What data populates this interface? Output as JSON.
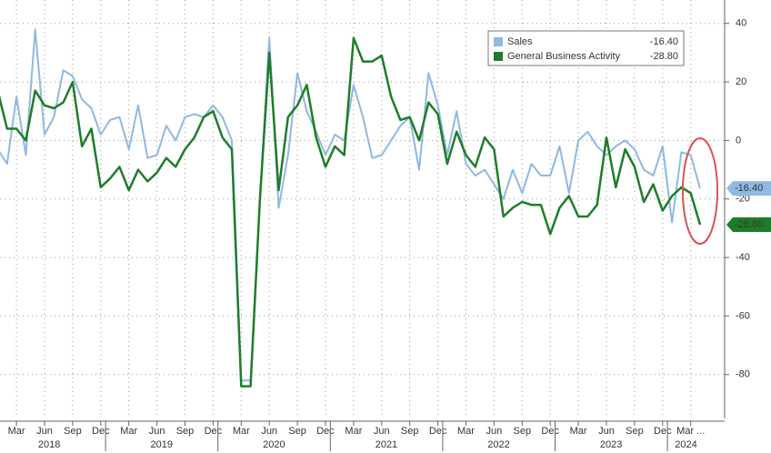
{
  "chart_data": {
    "type": "line",
    "categories": [
      null,
      null,
      "Mar",
      null,
      null,
      "Jun",
      null,
      null,
      "Sep",
      null,
      null,
      "Dec",
      null,
      null,
      "Mar",
      null,
      null,
      "Jun",
      null,
      null,
      "Sep",
      null,
      null,
      "Dec",
      null,
      null,
      "Mar",
      null,
      null,
      "Jun",
      null,
      null,
      "Sep",
      null,
      null,
      "Dec",
      null,
      null,
      "Mar",
      null,
      null,
      "Jun",
      null,
      null,
      "Sep",
      null,
      null,
      "Dec",
      null,
      null,
      "Mar",
      null,
      null,
      "Jun",
      null,
      null,
      "Sep",
      null,
      null,
      "Dec",
      null,
      null,
      "Mar",
      null,
      null,
      "Jun",
      null,
      null,
      "Sep",
      null,
      null,
      "Dec",
      null,
      null,
      "Mar ...",
      null
    ],
    "years": [
      "2018",
      "2019",
      "2020",
      "2021",
      "2022",
      "2023",
      "2024"
    ],
    "ylim": [
      -95,
      48
    ],
    "yticks": [
      40,
      20,
      0,
      -20,
      -40,
      -60,
      -80
    ],
    "grid": true,
    "series": [
      {
        "name": "Sales",
        "color": "#8fb9e0",
        "values": [
          -3,
          -8,
          15,
          -5,
          38,
          2,
          8,
          24,
          22,
          14,
          11,
          2,
          7,
          8,
          -3,
          12,
          -6,
          -5,
          5,
          0,
          8,
          9,
          8,
          12,
          8,
          0,
          -82,
          -82,
          -20,
          35,
          -23,
          -5,
          23,
          10,
          3,
          -5,
          2,
          0,
          19,
          8,
          -6,
          -5,
          0,
          5,
          8,
          -10,
          23,
          12,
          -5,
          10,
          -8,
          -12,
          -10,
          -15,
          -20,
          -10,
          -18,
          -8,
          -12,
          -12,
          -2,
          -18,
          0,
          3,
          -2,
          -5,
          -2,
          0,
          -3,
          -10,
          -12,
          -2,
          -28,
          -4,
          -5,
          -16.4
        ],
        "value_labels": [
          null,
          null,
          null,
          null,
          null,
          null,
          null,
          null,
          null,
          null,
          null,
          null,
          null,
          null,
          null,
          null,
          null,
          null,
          null,
          null,
          null,
          null,
          null,
          null,
          null,
          null,
          null,
          null,
          null,
          null,
          null,
          null,
          null,
          null,
          null,
          null,
          null,
          null,
          null,
          null,
          null,
          null,
          null,
          null,
          null,
          null,
          null,
          null,
          null,
          null,
          null,
          null,
          null,
          null,
          null,
          null,
          null,
          null,
          null,
          null,
          null,
          null,
          null,
          null,
          null,
          null,
          null,
          null,
          null,
          null,
          null,
          null,
          null,
          null,
          null,
          "-16.40"
        ]
      },
      {
        "name": "General Business Activity",
        "color": "#1e7d2a",
        "values": [
          17,
          4,
          4,
          0,
          17,
          12,
          11,
          13,
          20,
          -2,
          4,
          -16,
          -13,
          -9,
          -17,
          -10,
          -14,
          -11,
          -6,
          -9,
          -3,
          1,
          8,
          10,
          1,
          -3,
          -84,
          -84,
          -20,
          30,
          -17,
          8,
          12,
          19,
          1,
          -9,
          -2,
          -5,
          35,
          27,
          27,
          29,
          15,
          7,
          8,
          0,
          13,
          9,
          -8,
          3,
          -5,
          -9,
          1,
          -3,
          -26,
          -23,
          -21,
          -22,
          -22,
          -32,
          -23,
          -19,
          -26,
          -26,
          -22,
          1,
          -16,
          -3,
          -9,
          -21,
          -15,
          -24,
          -19,
          -16,
          -18,
          -28.8
        ],
        "value_labels": [
          null,
          null,
          null,
          null,
          null,
          null,
          null,
          null,
          null,
          null,
          null,
          null,
          null,
          null,
          null,
          null,
          null,
          null,
          null,
          null,
          null,
          null,
          null,
          null,
          null,
          null,
          null,
          null,
          null,
          null,
          null,
          null,
          null,
          null,
          null,
          null,
          null,
          null,
          null,
          null,
          null,
          null,
          null,
          null,
          null,
          null,
          null,
          null,
          null,
          null,
          null,
          null,
          null,
          null,
          null,
          null,
          null,
          null,
          null,
          null,
          null,
          null,
          null,
          null,
          null,
          null,
          null,
          null,
          null,
          null,
          null,
          null,
          null,
          null,
          null,
          "-28.80"
        ]
      }
    ]
  }
}
